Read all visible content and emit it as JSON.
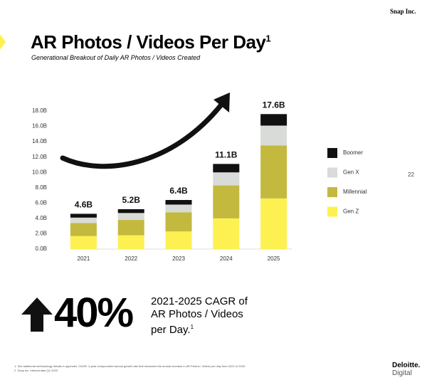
{
  "header": {
    "brand": "Snap Inc.",
    "title": "AR Photos / Videos Per Day",
    "title_footnote": "1",
    "subtitle": "Generational Breakout of Daily AR Photos / Videos Created",
    "page_number": "22"
  },
  "chart_data": {
    "type": "stacked-bar",
    "categories": [
      "2021",
      "2022",
      "2023",
      "2024",
      "2025"
    ],
    "series": [
      {
        "name": "Gen Z",
        "color": "#fdf151",
        "values": [
          1.7,
          1.8,
          2.3,
          4.0,
          6.6
        ]
      },
      {
        "name": "Millennial",
        "color": "#c4b93f",
        "values": [
          1.7,
          2.0,
          2.5,
          4.3,
          6.9
        ]
      },
      {
        "name": "Gen X",
        "color": "#d8dbd7",
        "values": [
          0.7,
          0.9,
          1.0,
          1.7,
          2.6
        ]
      },
      {
        "name": "Boomer",
        "color": "#111111",
        "values": [
          0.5,
          0.5,
          0.6,
          1.1,
          1.5
        ]
      }
    ],
    "totals": {
      "values": [
        4.6,
        5.2,
        6.4,
        11.1,
        17.6
      ],
      "value_labels": [
        "4.6B",
        "5.2B",
        "6.4B",
        "11.1B",
        "17.6B"
      ]
    },
    "ylim": [
      0,
      18
    ],
    "yticks": [
      {
        "value": 0,
        "label": "0.0B"
      },
      {
        "value": 2,
        "label": "2.0B"
      },
      {
        "value": 4,
        "label": "4.0B"
      },
      {
        "value": 6,
        "label": "6.0B"
      },
      {
        "value": 8,
        "label": "8.0B"
      },
      {
        "value": 10,
        "label": "10.0B"
      },
      {
        "value": 12,
        "label": "12.0B"
      },
      {
        "value": 14,
        "label": "14.0B"
      },
      {
        "value": 16,
        "label": "16.0B"
      },
      {
        "value": 18,
        "label": "18.0B"
      }
    ],
    "grid": false,
    "legend": "right"
  },
  "callout": {
    "value": "40%",
    "lines": [
      "2021-2025 CAGR of",
      "AR Photos / Videos",
      "per Day."
    ],
    "footnote": "1"
  },
  "footnotes": [
    "1. See additional methodology details in appendix. CAGR: 4-year compounded annual growth rate that measures the annual increase in AR Photos / Videos per day from 2021 to 2025",
    "2. Snap Inc. internal data Q1 2020"
  ],
  "footer": {
    "logo": "Deloitte.",
    "logo_sub": "Digital"
  }
}
